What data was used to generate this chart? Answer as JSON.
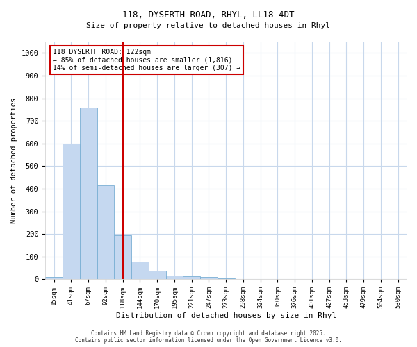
{
  "title_line1": "118, DYSERTH ROAD, RHYL, LL18 4DT",
  "title_line2": "Size of property relative to detached houses in Rhyl",
  "xlabel": "Distribution of detached houses by size in Rhyl",
  "ylabel": "Number of detached properties",
  "categories": [
    "15sqm",
    "41sqm",
    "67sqm",
    "92sqm",
    "118sqm",
    "144sqm",
    "170sqm",
    "195sqm",
    "221sqm",
    "247sqm",
    "273sqm",
    "298sqm",
    "324sqm",
    "350sqm",
    "376sqm",
    "401sqm",
    "427sqm",
    "453sqm",
    "479sqm",
    "504sqm",
    "530sqm"
  ],
  "values": [
    12,
    600,
    760,
    415,
    195,
    78,
    37,
    18,
    15,
    10,
    5,
    0,
    0,
    0,
    0,
    0,
    0,
    0,
    0,
    0,
    0
  ],
  "bar_color": "#c5d8f0",
  "bar_edge_color": "#7aafd4",
  "vline_x": 4,
  "vline_color": "#cc0000",
  "annotation_box_color": "#cc0000",
  "annotation_text_line1": "118 DYSERTH ROAD: 122sqm",
  "annotation_text_line2": "← 85% of detached houses are smaller (1,816)",
  "annotation_text_line3": "14% of semi-detached houses are larger (307) →",
  "ylim": [
    0,
    1050
  ],
  "yticks": [
    0,
    100,
    200,
    300,
    400,
    500,
    600,
    700,
    800,
    900,
    1000
  ],
  "grid_color": "#c8d8ec",
  "bg_color": "#ffffff",
  "footer_line1": "Contains HM Land Registry data © Crown copyright and database right 2025.",
  "footer_line2": "Contains public sector information licensed under the Open Government Licence v3.0."
}
